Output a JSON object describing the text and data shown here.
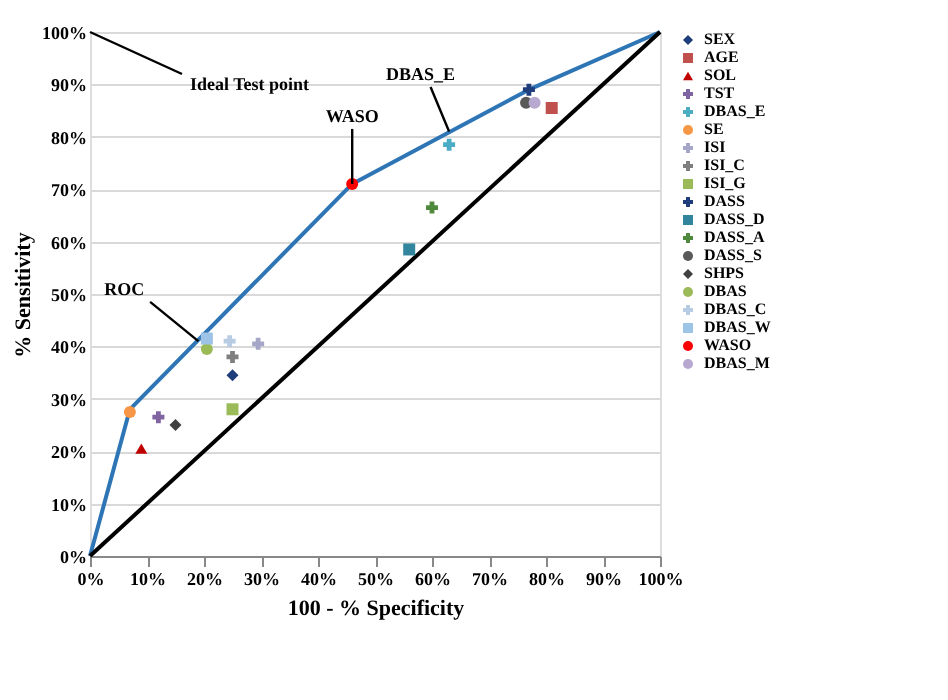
{
  "chart_data": {
    "type": "scatter",
    "xlabel": "100 - % Specificity",
    "ylabel": "% Sensitivity",
    "xlim": [
      0,
      100
    ],
    "ylim": [
      0,
      100
    ],
    "xticks": [
      {
        "value": 0,
        "label": "0%"
      },
      {
        "value": 10,
        "label": "10%"
      },
      {
        "value": 20,
        "label": "20%"
      },
      {
        "value": 30,
        "label": "30%"
      },
      {
        "value": 40,
        "label": "40%"
      },
      {
        "value": 50,
        "label": "50%"
      },
      {
        "value": 60,
        "label": "60%"
      },
      {
        "value": 70,
        "label": "70%"
      },
      {
        "value": 80,
        "label": "80%"
      },
      {
        "value": 90,
        "label": "90%"
      },
      {
        "value": 100,
        "label": "100%"
      }
    ],
    "yticks": [
      {
        "value": 0,
        "label": "0%"
      },
      {
        "value": 10,
        "label": "10%"
      },
      {
        "value": 20,
        "label": "20%"
      },
      {
        "value": 30,
        "label": "30%"
      },
      {
        "value": 40,
        "label": "40%"
      },
      {
        "value": 50,
        "label": "50%"
      },
      {
        "value": 60,
        "label": "60%"
      },
      {
        "value": 70,
        "label": "70%"
      },
      {
        "value": 80,
        "label": "80%"
      },
      {
        "value": 90,
        "label": "90%"
      },
      {
        "value": 100,
        "label": "100%"
      }
    ],
    "grid": "y",
    "legend": "right",
    "series": [
      {
        "type": "line",
        "color": "#2e75b6",
        "x": [
          0,
          7,
          46,
          77,
          100
        ],
        "values": [
          0,
          28,
          71,
          89,
          100
        ]
      },
      {
        "type": "line",
        "color": "#000000",
        "x": [
          0,
          100
        ],
        "values": [
          0,
          100
        ]
      },
      {
        "name": "SEX",
        "color": "#1f3d7a",
        "marker": "diamond",
        "x": [
          25
        ],
        "values": [
          34.5
        ]
      },
      {
        "name": "AGE",
        "color": "#c0504d",
        "marker": "square",
        "x": [
          81
        ],
        "values": [
          85.5
        ]
      },
      {
        "name": "SOL",
        "color": "#c00000",
        "marker": "triangle",
        "x": [
          9
        ],
        "values": [
          20.5
        ]
      },
      {
        "name": "TST",
        "color": "#8064a2",
        "marker": "cross",
        "x": [
          12
        ],
        "values": [
          26.5
        ]
      },
      {
        "name": "DBAS_E",
        "color": "#4bacc6",
        "marker": "cross",
        "x": [
          63
        ],
        "values": [
          78.5
        ]
      },
      {
        "name": "SE",
        "color": "#f79646",
        "marker": "circle",
        "x": [
          7
        ],
        "values": [
          27.5
        ]
      },
      {
        "name": "ISI",
        "color": "#a6a6c8",
        "marker": "cross",
        "x": [
          29.5
        ],
        "values": [
          40.5
        ]
      },
      {
        "name": "ISI_C",
        "color": "#7f7f7f",
        "marker": "cross",
        "x": [
          25
        ],
        "values": [
          38
        ]
      },
      {
        "name": "ISI_G",
        "color": "#9bbb59",
        "marker": "square",
        "x": [
          25
        ],
        "values": [
          28
        ]
      },
      {
        "name": "DASS",
        "color": "#1f3d7a",
        "marker": "cross",
        "x": [
          77
        ],
        "values": [
          89
        ]
      },
      {
        "name": "DASS_D",
        "color": "#31859c",
        "marker": "square",
        "x": [
          56
        ],
        "values": [
          58.5
        ]
      },
      {
        "name": "DASS_A",
        "color": "#4f8a3c",
        "marker": "cross",
        "x": [
          60
        ],
        "values": [
          66.5
        ]
      },
      {
        "name": "DASS_S",
        "color": "#595959",
        "marker": "circle",
        "x": [
          76.5
        ],
        "values": [
          86.5
        ]
      },
      {
        "name": "SHPS",
        "color": "#404040",
        "marker": "diamond",
        "x": [
          15
        ],
        "values": [
          25
        ]
      },
      {
        "name": "DBAS",
        "color": "#9bbb59",
        "marker": "circle",
        "x": [
          20.5
        ],
        "values": [
          39.5
        ]
      },
      {
        "name": "DBAS_C",
        "color": "#b8cce4",
        "marker": "cross",
        "x": [
          24.5
        ],
        "values": [
          41
        ]
      },
      {
        "name": "DBAS_W",
        "color": "#9dc3e6",
        "marker": "square",
        "x": [
          20.5
        ],
        "values": [
          41.5
        ]
      },
      {
        "name": "WASO",
        "color": "#ff0000",
        "marker": "circle",
        "x": [
          46
        ],
        "values": [
          71
        ]
      },
      {
        "name": "DBAS_M",
        "color": "#b7a8d0",
        "marker": "circle",
        "x": [
          78
        ],
        "values": [
          86.5
        ]
      }
    ],
    "annotations": [
      "Ideal Test point",
      {
        "text": "WASO",
        "x": 46,
        "y": 71
      },
      {
        "text": "DBAS_E",
        "x": 63,
        "y": 81
      },
      {
        "text": "ROC",
        "x": 19,
        "y": 41
      }
    ]
  }
}
